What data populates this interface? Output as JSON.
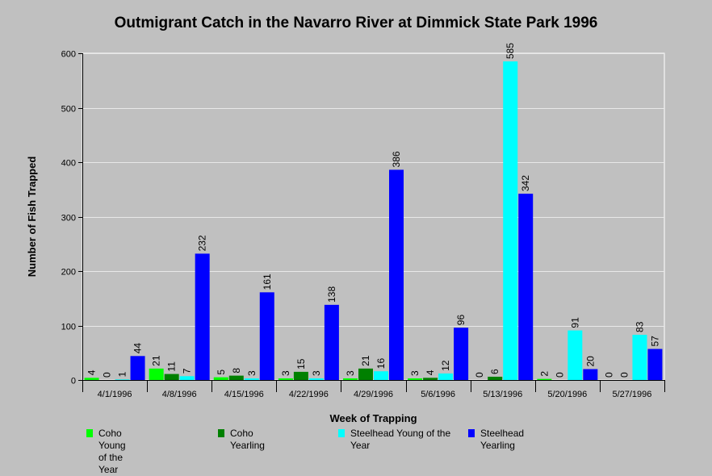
{
  "chart_data": {
    "type": "bar",
    "title": "Outmigrant Catch in the Navarro River at Dimmick State Park 1996",
    "xlabel": "Week of Trapping",
    "ylabel": "Number of Fish Trapped",
    "ylim": [
      0,
      600
    ],
    "yticks": [
      0,
      100,
      200,
      300,
      400,
      500,
      600
    ],
    "grid": true,
    "legend_position": "bottom",
    "categories": [
      "4/1/1996",
      "4/8/1996",
      "4/15/1996",
      "4/22/1996",
      "4/29/1996",
      "5/6/1996",
      "5/13/1996",
      "5/20/1996",
      "5/27/1996"
    ],
    "series": [
      {
        "name": "Coho Young of the Year",
        "color": "#00ff00",
        "values": [
          4,
          21,
          5,
          3,
          3,
          3,
          0,
          2,
          0
        ]
      },
      {
        "name": "Coho Yearling",
        "color": "#008000",
        "values": [
          0,
          11,
          8,
          15,
          21,
          4,
          6,
          0,
          0
        ]
      },
      {
        "name": "Steelhead Young of the Year",
        "color": "#00ffff",
        "values": [
          1,
          7,
          3,
          3,
          16,
          12,
          585,
          91,
          83
        ]
      },
      {
        "name": "Steelhead Yearling",
        "color": "#0000ff",
        "values": [
          44,
          232,
          161,
          138,
          386,
          96,
          342,
          20,
          57
        ]
      }
    ]
  }
}
